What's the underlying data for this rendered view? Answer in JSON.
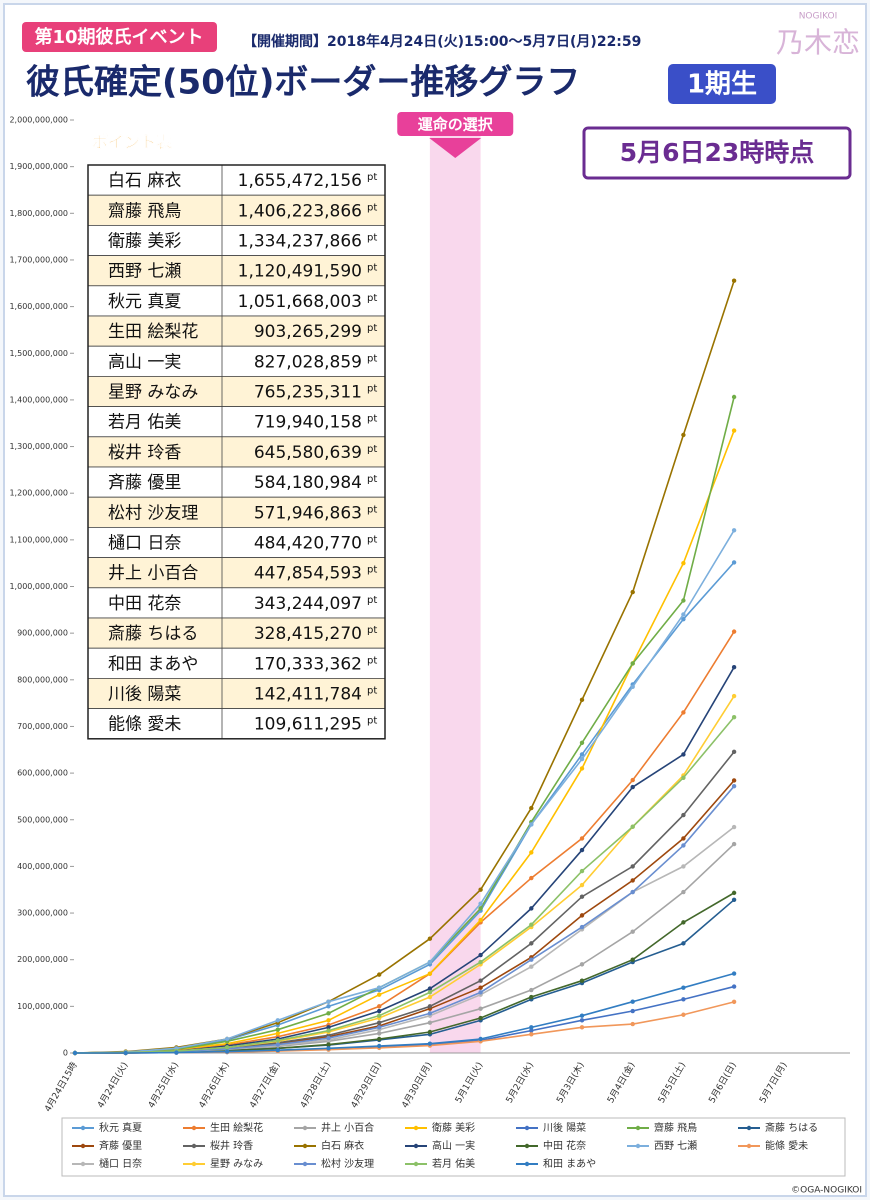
{
  "header": {
    "event": "第10期彼氏イベント",
    "period": "【開催期間】2018年4月24日(火)15:00～5月7日(月)22:59",
    "title": "彼氏確定(50位)ボーダー推移グラフ",
    "badge": "1期生",
    "logo_en": "NOGIKOI",
    "logo": "乃木恋",
    "snapshot": "5月6日23時時点",
    "copyright": "©OGA-NOGIKOI"
  },
  "chart_data": {
    "type": "line",
    "categories": [
      "4月24日15時",
      "4月24日(火)",
      "4月25日(水)",
      "4月26日(木)",
      "4月27日(金)",
      "4月28日(土)",
      "4月29日(日)",
      "4月30日(月)",
      "5月1日(火)",
      "5月2日(水)",
      "5月3日(木)",
      "5月4日(金)",
      "5月5日(土)",
      "5月6日(日)",
      "5月7日(月)"
    ],
    "highlight": {
      "label": "運命の選択",
      "categories": [
        "4月30日(月)",
        "5月1日(火)"
      ]
    },
    "ylim": [
      0,
      2000000000
    ],
    "yticks": [
      {
        "value": 0,
        "label": "0"
      },
      {
        "value": 100000000,
        "label": "100,000,000"
      },
      {
        "value": 200000000,
        "label": "200,000,000"
      },
      {
        "value": 300000000,
        "label": "300,000,000"
      },
      {
        "value": 400000000,
        "label": "400,000,000"
      },
      {
        "value": 500000000,
        "label": "500,000,000"
      },
      {
        "value": 600000000,
        "label": "600,000,000"
      },
      {
        "value": 700000000,
        "label": "700,000,000"
      },
      {
        "value": 800000000,
        "label": "800,000,000"
      },
      {
        "value": 900000000,
        "label": "900,000,000"
      },
      {
        "value": 1000000000,
        "label": "1,000,000,000"
      },
      {
        "value": 1100000000,
        "label": "1,100,000,000"
      },
      {
        "value": 1200000000,
        "label": "1,200,000,000"
      },
      {
        "value": 1300000000,
        "label": "1,300,000,000"
      },
      {
        "value": 1400000000,
        "label": "1,400,000,000"
      },
      {
        "value": 1500000000,
        "label": "1,500,000,000"
      },
      {
        "value": 1600000000,
        "label": "1,600,000,000"
      },
      {
        "value": 1700000000,
        "label": "1,700,000,000"
      },
      {
        "value": 1800000000,
        "label": "1,800,000,000"
      },
      {
        "value": 1900000000,
        "label": "1,900,000,000"
      },
      {
        "value": 2000000000,
        "label": "2,000,000,000"
      }
    ],
    "grid": false,
    "series": [
      {
        "name": "秋元 真夏",
        "color": "#5b9bd5",
        "values": [
          0,
          2000000,
          9000000,
          28000000,
          60000000,
          100000000,
          135000000,
          190000000,
          305000000,
          490000000,
          640000000,
          790000000,
          930000000,
          1051668003,
          null
        ]
      },
      {
        "name": "生田 絵梨花",
        "color": "#ed7d31",
        "values": [
          0,
          1000000,
          5000000,
          17000000,
          35000000,
          60000000,
          100000000,
          170000000,
          280000000,
          375000000,
          460000000,
          585000000,
          730000000,
          903265299,
          null
        ]
      },
      {
        "name": "井上 小百合",
        "color": "#a5a5a5",
        "values": [
          0,
          1000000,
          3000000,
          7000000,
          14000000,
          25000000,
          42000000,
          65000000,
          95000000,
          135000000,
          190000000,
          260000000,
          345000000,
          447854593,
          null
        ]
      },
      {
        "name": "衛藤 美彩",
        "color": "#ffc000",
        "values": [
          0,
          2000000,
          8000000,
          20000000,
          42000000,
          70000000,
          125000000,
          170000000,
          285000000,
          430000000,
          610000000,
          835000000,
          1050000000,
          1334237866,
          null
        ]
      },
      {
        "name": "川後 陽菜",
        "color": "#4472c4",
        "values": [
          0,
          0,
          1000000,
          2000000,
          5000000,
          8000000,
          12000000,
          18000000,
          27000000,
          48000000,
          70000000,
          90000000,
          115000000,
          142411784,
          null
        ]
      },
      {
        "name": "齋藤 飛鳥",
        "color": "#70ad47",
        "values": [
          0,
          2000000,
          8000000,
          25000000,
          50000000,
          85000000,
          140000000,
          195000000,
          310000000,
          495000000,
          665000000,
          835000000,
          970000000,
          1406223866,
          null
        ]
      },
      {
        "name": "斎藤 ちはる",
        "color": "#255e91",
        "values": [
          0,
          0,
          2000000,
          5000000,
          10000000,
          17000000,
          28000000,
          40000000,
          70000000,
          115000000,
          150000000,
          195000000,
          235000000,
          328415270,
          null
        ]
      },
      {
        "name": "斉藤 優里",
        "color": "#9e480e",
        "values": [
          0,
          1000000,
          3000000,
          9000000,
          20000000,
          35000000,
          58000000,
          95000000,
          140000000,
          205000000,
          295000000,
          370000000,
          460000000,
          584180984,
          null
        ]
      },
      {
        "name": "桜井 玲香",
        "color": "#636363",
        "values": [
          0,
          1000000,
          3000000,
          10000000,
          22000000,
          38000000,
          65000000,
          100000000,
          155000000,
          235000000,
          335000000,
          400000000,
          510000000,
          645580639,
          null
        ]
      },
      {
        "name": "白石 麻衣",
        "color": "#997300",
        "values": [
          0,
          3000000,
          12000000,
          30000000,
          65000000,
          110000000,
          168000000,
          245000000,
          350000000,
          525000000,
          757000000,
          988000000,
          1325000000,
          1655472156,
          null
        ]
      },
      {
        "name": "高山 一実",
        "color": "#264478",
        "values": [
          0,
          1000000,
          4000000,
          15000000,
          30000000,
          55000000,
          90000000,
          138000000,
          210000000,
          310000000,
          435000000,
          570000000,
          640000000,
          827028859,
          null
        ]
      },
      {
        "name": "中田 花奈",
        "color": "#43682b",
        "values": [
          0,
          0,
          2000000,
          5000000,
          10000000,
          18000000,
          30000000,
          45000000,
          75000000,
          120000000,
          155000000,
          200000000,
          280000000,
          343244097,
          null
        ]
      },
      {
        "name": "西野 七瀬",
        "color": "#7cafdd",
        "values": [
          0,
          2000000,
          10000000,
          30000000,
          70000000,
          110000000,
          140000000,
          195000000,
          320000000,
          490000000,
          630000000,
          785000000,
          940000000,
          1120491590,
          null
        ]
      },
      {
        "name": "能條 愛未",
        "color": "#f1975a",
        "values": [
          0,
          0,
          1000000,
          2000000,
          4000000,
          7000000,
          11000000,
          16000000,
          25000000,
          40000000,
          55000000,
          62000000,
          82000000,
          109611295,
          null
        ]
      },
      {
        "name": "樋口 日奈",
        "color": "#b7b7b7",
        "values": [
          0,
          1000000,
          3000000,
          8000000,
          16000000,
          28000000,
          50000000,
          80000000,
          125000000,
          185000000,
          265000000,
          345000000,
          400000000,
          484420770,
          null
        ]
      },
      {
        "name": "星野 みなみ",
        "color": "#ffcd33",
        "values": [
          0,
          1000000,
          4000000,
          12000000,
          25000000,
          45000000,
          75000000,
          120000000,
          190000000,
          270000000,
          360000000,
          485000000,
          595000000,
          765235311,
          null
        ]
      },
      {
        "name": "松村 沙友理",
        "color": "#698ed0",
        "values": [
          0,
          1000000,
          3000000,
          9000000,
          18000000,
          32000000,
          55000000,
          85000000,
          130000000,
          200000000,
          270000000,
          345000000,
          445000000,
          571946863,
          null
        ]
      },
      {
        "name": "若月 佑美",
        "color": "#8cc168",
        "values": [
          0,
          1000000,
          4000000,
          12000000,
          27000000,
          48000000,
          80000000,
          130000000,
          195000000,
          275000000,
          390000000,
          485000000,
          590000000,
          719940158,
          null
        ]
      },
      {
        "name": "和田 まあや",
        "color": "#327dc2",
        "values": [
          0,
          0,
          1000000,
          3000000,
          6000000,
          10000000,
          15000000,
          20000000,
          30000000,
          55000000,
          80000000,
          110000000,
          140000000,
          170333362,
          null
        ]
      }
    ],
    "table": {
      "title": "ポイント表",
      "unit": "pt",
      "rows": [
        [
          "白石 麻衣",
          "1,655,472,156"
        ],
        [
          "齋藤 飛鳥",
          "1,406,223,866"
        ],
        [
          "衛藤 美彩",
          "1,334,237,866"
        ],
        [
          "西野 七瀬",
          "1,120,491,590"
        ],
        [
          "秋元 真夏",
          "1,051,668,003"
        ],
        [
          "生田 絵梨花",
          "903,265,299"
        ],
        [
          "高山 一実",
          "827,028,859"
        ],
        [
          "星野 みなみ",
          "765,235,311"
        ],
        [
          "若月 佑美",
          "719,940,158"
        ],
        [
          "桜井 玲香",
          "645,580,639"
        ],
        [
          "斉藤 優里",
          "584,180,984"
        ],
        [
          "松村 沙友理",
          "571,946,863"
        ],
        [
          "樋口 日奈",
          "484,420,770"
        ],
        [
          "井上 小百合",
          "447,854,593"
        ],
        [
          "中田 花奈",
          "343,244,097"
        ],
        [
          "斎藤 ちはる",
          "328,415,270"
        ],
        [
          "和田 まあや",
          "170,333,362"
        ],
        [
          "川後 陽菜",
          "142,411,784"
        ],
        [
          "能條 愛未",
          "109,611,295"
        ]
      ]
    }
  }
}
